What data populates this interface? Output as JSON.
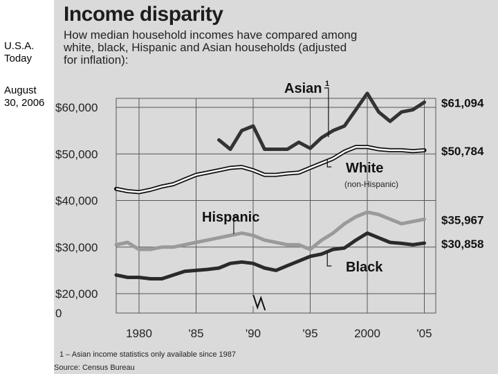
{
  "margin_notes": {
    "publication": "U.S.A. Today",
    "date": "August 30, 2006"
  },
  "footnote": "1 – Asian income statistics only available since 1987",
  "source": "Source: Census Bureau",
  "colors": {
    "white_series": "#111111",
    "black_series": "#2a2a2a",
    "hispanic_series": "#9a9a9a",
    "asian_series": "#333333",
    "grid": "#555555",
    "panel": "#dadada"
  },
  "chart_data": {
    "type": "line",
    "title": "Income disparity",
    "subtitle": "How median household incomes have compared among white, black, Hispanic and Asian households (adjusted for inflation):",
    "xlabel": "",
    "ylabel": "",
    "x_ticks": [
      1980,
      1985,
      1990,
      1995,
      2000,
      2005
    ],
    "x_tick_labels": [
      "1980",
      "'85",
      "'90",
      "'95",
      "2000",
      "'05"
    ],
    "xlim": [
      1978,
      2006
    ],
    "y_ticks": [
      0,
      20000,
      30000,
      40000,
      50000,
      60000
    ],
    "y_tick_labels": [
      "0",
      "$20,000",
      "$30,000",
      "$40,000",
      "$50,000",
      "$60,000"
    ],
    "axis_break": "between 0 and $20,000",
    "grid": true,
    "series": [
      {
        "name": "Asian",
        "label": "Asian",
        "footnote_mark": "1",
        "end_value_label": "$61,094",
        "x": [
          1987,
          1988,
          1989,
          1990,
          1991,
          1992,
          1993,
          1994,
          1995,
          1996,
          1997,
          1998,
          1999,
          2000,
          2001,
          2002,
          2003,
          2004,
          2005
        ],
        "values": [
          53000,
          51000,
          55000,
          56000,
          51000,
          51000,
          51000,
          52500,
          51200,
          53500,
          55000,
          56000,
          59500,
          63000,
          59000,
          57000,
          59000,
          59500,
          61094
        ]
      },
      {
        "name": "White",
        "label": "White",
        "sublabel": "(non-Hispanic)",
        "end_value_label": "$50,784",
        "x": [
          1978,
          1979,
          1980,
          1981,
          1982,
          1983,
          1984,
          1985,
          1986,
          1987,
          1988,
          1989,
          1990,
          1991,
          1992,
          1993,
          1994,
          1995,
          1996,
          1997,
          1998,
          1999,
          2000,
          2001,
          2002,
          2003,
          2004,
          2005
        ],
        "values": [
          42500,
          42000,
          41800,
          42300,
          43000,
          43500,
          44500,
          45500,
          46000,
          46500,
          47000,
          47200,
          46500,
          45500,
          45500,
          45800,
          46000,
          47000,
          48000,
          49000,
          50500,
          51500,
          51500,
          51000,
          50800,
          50800,
          50600,
          50784
        ]
      },
      {
        "name": "Hispanic",
        "label": "Hispanic",
        "end_value_label": "$35,967",
        "x": [
          1978,
          1979,
          1980,
          1981,
          1982,
          1983,
          1984,
          1985,
          1986,
          1987,
          1988,
          1989,
          1990,
          1991,
          1992,
          1993,
          1994,
          1995,
          1996,
          1997,
          1998,
          1999,
          2000,
          2001,
          2002,
          2003,
          2004,
          2005
        ],
        "values": [
          30500,
          31000,
          29500,
          29500,
          30000,
          30000,
          30500,
          31000,
          31500,
          32000,
          32500,
          33000,
          32500,
          31500,
          31000,
          30500,
          30500,
          29500,
          31500,
          33000,
          35000,
          36500,
          37500,
          37000,
          36000,
          35000,
          35500,
          35967
        ]
      },
      {
        "name": "Black",
        "label": "Black",
        "end_value_label": "$30,858",
        "x": [
          1978,
          1979,
          1980,
          1981,
          1982,
          1983,
          1984,
          1985,
          1986,
          1987,
          1988,
          1989,
          1990,
          1991,
          1992,
          1993,
          1994,
          1995,
          1996,
          1997,
          1998,
          1999,
          2000,
          2001,
          2002,
          2003,
          2004,
          2005
        ],
        "values": [
          24000,
          23500,
          23500,
          23200,
          23200,
          24000,
          24800,
          25000,
          25200,
          25500,
          26500,
          26800,
          26500,
          25500,
          25000,
          26000,
          27000,
          28000,
          28500,
          29500,
          29800,
          31500,
          33000,
          32000,
          31000,
          30800,
          30500,
          30858
        ]
      }
    ]
  }
}
